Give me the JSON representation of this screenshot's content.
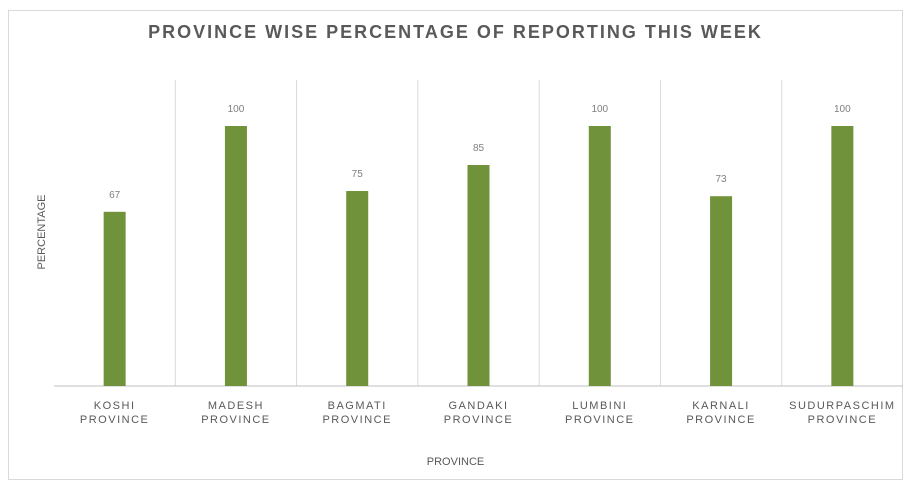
{
  "chart_data": {
    "type": "bar",
    "title": "PROVINCE WISE PERCENTAGE OF REPORTING THIS WEEK",
    "xlabel": "PROVINCE",
    "ylabel": "PERCENTAGE",
    "categories": [
      [
        "KOSHI",
        "PROVINCE"
      ],
      [
        "MADESH",
        "PROVINCE"
      ],
      [
        "BAGMATI",
        "PROVINCE"
      ],
      [
        "GANDAKI",
        "PROVINCE"
      ],
      [
        "LUMBINI",
        "PROVINCE"
      ],
      [
        "KARNALI",
        "PROVINCE"
      ],
      [
        "SUDURPASCHIM",
        "PROVINCE"
      ]
    ],
    "series": [
      {
        "values": [
          67,
          100,
          75,
          85,
          100,
          73,
          100
        ]
      }
    ],
    "ylim": [
      0,
      100
    ],
    "grid": "vertical-category-separators",
    "legend": "none",
    "colors": {
      "bar": "#70923a",
      "gridline": "#d9d9d9",
      "axis": "#bfbfbf",
      "text": "#595959",
      "data_label": "#7f7f7f"
    }
  }
}
